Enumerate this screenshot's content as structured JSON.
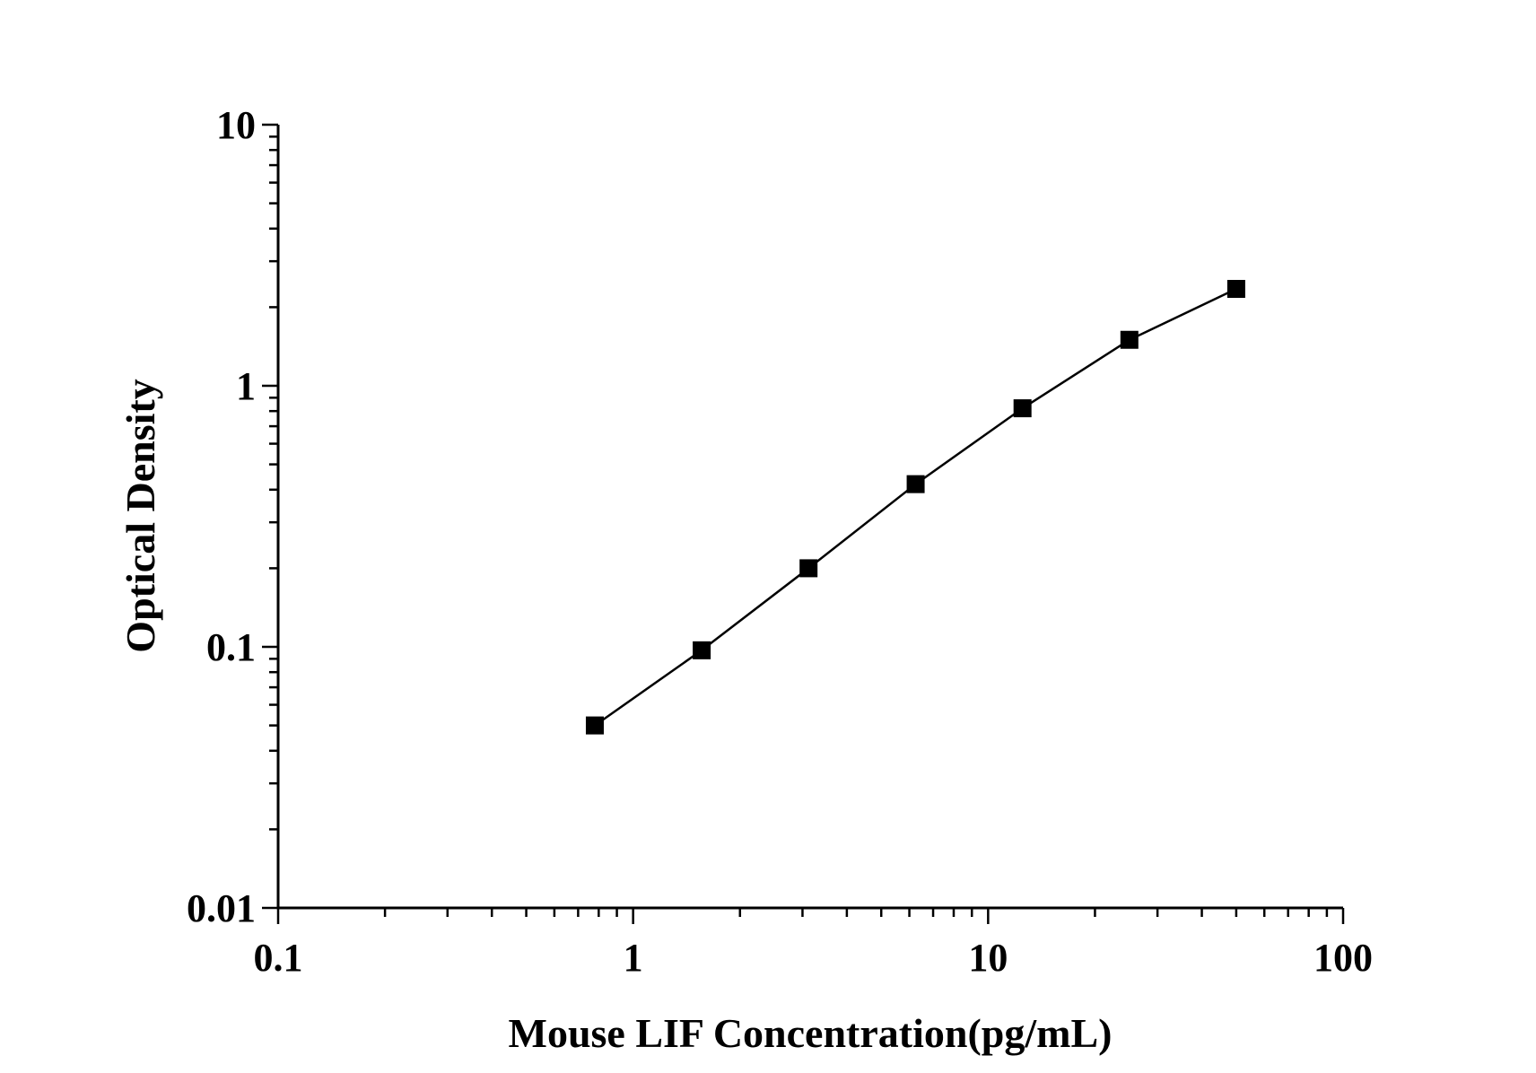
{
  "chart_data": {
    "type": "line",
    "title": "",
    "xlabel": "Mouse LIF Concentration(pg/mL)",
    "ylabel": "Optical Density",
    "x_scale": "log",
    "y_scale": "log",
    "xlim": [
      0.1,
      100
    ],
    "ylim": [
      0.01,
      10
    ],
    "x_ticks": [
      "0.1",
      "1",
      "10",
      "100"
    ],
    "y_ticks": [
      "0.01",
      "0.1",
      "1",
      "10"
    ],
    "grid": false,
    "legend": "none",
    "marker": "square",
    "color": "#000000",
    "series": [
      {
        "x": [
          0.78,
          1.56,
          3.12,
          6.25,
          12.5,
          25,
          50
        ],
        "y": [
          0.05,
          0.097,
          0.2,
          0.42,
          0.82,
          1.5,
          2.35
        ]
      }
    ]
  }
}
